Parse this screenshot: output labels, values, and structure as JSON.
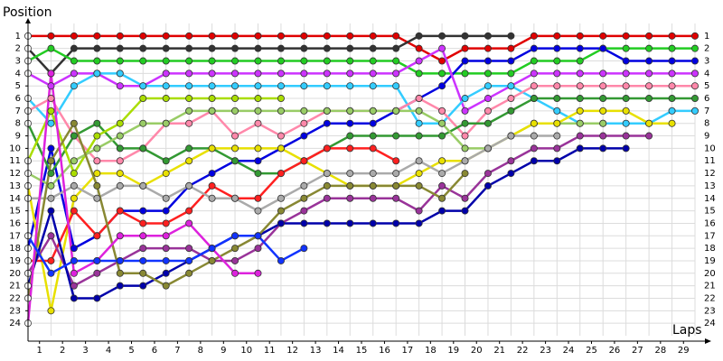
{
  "chart_data": {
    "type": "line",
    "y_label": "Position",
    "x_label": "Laps",
    "x": [
      0,
      1,
      2,
      3,
      4,
      5,
      6,
      7,
      8,
      9,
      10,
      11,
      12,
      13,
      14,
      15,
      16,
      17,
      18,
      19,
      20,
      21,
      22,
      23,
      24,
      25,
      26,
      27,
      28,
      29
    ],
    "xlim": [
      0,
      29
    ],
    "xticks": [
      {
        "value": 0.5,
        "label": "1"
      },
      {
        "value": 1.5,
        "label": "2"
      },
      {
        "value": 2.5,
        "label": "3"
      },
      {
        "value": 3.5,
        "label": "4"
      },
      {
        "value": 4.5,
        "label": "5"
      },
      {
        "value": 5.5,
        "label": "6"
      },
      {
        "value": 6.5,
        "label": "7"
      },
      {
        "value": 7.5,
        "label": "8"
      },
      {
        "value": 8.5,
        "label": "9"
      },
      {
        "value": 9.5,
        "label": "10"
      },
      {
        "value": 10.5,
        "label": "11"
      },
      {
        "value": 11.5,
        "label": "12"
      },
      {
        "value": 12.5,
        "label": "13"
      },
      {
        "value": 13.5,
        "label": "14"
      },
      {
        "value": 14.5,
        "label": "15"
      },
      {
        "value": 15.5,
        "label": "16"
      },
      {
        "value": 16.5,
        "label": "17"
      },
      {
        "value": 17.5,
        "label": "18"
      },
      {
        "value": 18.5,
        "label": "19"
      },
      {
        "value": 19.5,
        "label": "20"
      },
      {
        "value": 20.5,
        "label": "21"
      },
      {
        "value": 21.5,
        "label": "22"
      },
      {
        "value": 22.5,
        "label": "23"
      },
      {
        "value": 23.5,
        "label": "24"
      },
      {
        "value": 24.5,
        "label": "25"
      },
      {
        "value": 25.5,
        "label": "26"
      },
      {
        "value": 26.5,
        "label": "27"
      },
      {
        "value": 27.5,
        "label": "28"
      },
      {
        "value": 28.5,
        "label": "29"
      }
    ],
    "ylim": [
      25,
      0
    ],
    "yticks": [
      1,
      2,
      3,
      4,
      5,
      6,
      7,
      8,
      9,
      10,
      11,
      12,
      13,
      14,
      15,
      16,
      17,
      18,
      19,
      20,
      21,
      22,
      23,
      24
    ],
    "grid": true,
    "series": [
      {
        "color": "#e00000",
        "values": [
          1,
          1,
          1,
          1,
          1,
          1,
          1,
          1,
          1,
          1,
          1,
          1,
          1,
          1,
          1,
          1,
          1,
          2,
          3,
          2,
          2,
          2,
          1,
          1,
          1,
          1,
          1,
          1,
          1,
          1
        ]
      },
      {
        "color": "#333333",
        "values": [
          2,
          4,
          2,
          2,
          2,
          2,
          2,
          2,
          2,
          2,
          2,
          2,
          2,
          2,
          2,
          2,
          2,
          1,
          1,
          1,
          1,
          1,
          null,
          null,
          null,
          null,
          null,
          null,
          null,
          null
        ]
      },
      {
        "color": "#22cc22",
        "values": [
          3,
          2,
          3,
          3,
          3,
          3,
          3,
          3,
          3,
          3,
          3,
          3,
          3,
          3,
          3,
          3,
          3,
          4,
          4,
          4,
          4,
          4,
          3,
          3,
          3,
          2,
          2,
          2,
          2,
          2
        ]
      },
      {
        "color": "#0000e0",
        "values": [
          18,
          10,
          18,
          17,
          15,
          15,
          15,
          13,
          12,
          11,
          11,
          10,
          9,
          8,
          8,
          8,
          7,
          6,
          5,
          3,
          3,
          3,
          2,
          2,
          2,
          2,
          3,
          3,
          3,
          3
        ]
      },
      {
        "color": "#cc33ff",
        "values": [
          4,
          5,
          4,
          4,
          5,
          5,
          4,
          4,
          4,
          4,
          4,
          4,
          4,
          4,
          4,
          4,
          4,
          3,
          2,
          7,
          6,
          5,
          4,
          4,
          4,
          4,
          4,
          4,
          4,
          4
        ]
      },
      {
        "color": "#33ccff",
        "values": [
          6,
          8,
          5,
          4,
          4,
          5,
          5,
          5,
          5,
          5,
          5,
          5,
          5,
          5,
          5,
          5,
          5,
          8,
          8,
          6,
          5,
          5,
          6,
          7,
          8,
          8,
          8,
          8,
          7,
          7
        ]
      },
      {
        "color": "#ff88aa",
        "values": [
          7,
          6,
          9,
          11,
          11,
          10,
          8,
          8,
          7,
          9,
          8,
          9,
          8,
          7,
          7,
          7,
          7,
          6,
          7,
          9,
          7,
          6,
          5,
          5,
          5,
          5,
          5,
          5,
          5,
          5
        ]
      },
      {
        "color": "#339933",
        "values": [
          8,
          12,
          9,
          8,
          10,
          10,
          11,
          10,
          10,
          11,
          12,
          12,
          11,
          10,
          9,
          9,
          9,
          9,
          9,
          8,
          8,
          7,
          6,
          6,
          6,
          6,
          6,
          6,
          6,
          6
        ]
      },
      {
        "color": "#aadd00",
        "values": [
          11,
          7,
          12,
          9,
          8,
          6,
          6,
          6,
          6,
          6,
          6,
          6,
          null,
          null,
          null,
          null,
          null,
          null,
          null,
          null,
          null,
          null,
          null,
          null,
          null,
          null,
          null,
          null,
          null,
          null
        ]
      },
      {
        "color": "#99cc66",
        "values": [
          12,
          13,
          11,
          10,
          9,
          8,
          8,
          7,
          7,
          7,
          7,
          7,
          7,
          7,
          7,
          7,
          7,
          7,
          8,
          10,
          10,
          9,
          8,
          8,
          8,
          8,
          null,
          null,
          null,
          null
        ]
      },
      {
        "color": "#e8e000",
        "values": [
          13,
          23,
          14,
          12,
          12,
          13,
          12,
          11,
          10,
          10,
          10,
          10,
          11,
          12,
          13,
          13,
          13,
          12,
          11,
          11,
          10,
          9,
          8,
          8,
          7,
          7,
          7,
          8,
          8,
          null
        ]
      },
      {
        "color": "#ff2020",
        "values": [
          19,
          19,
          15,
          17,
          15,
          16,
          16,
          15,
          13,
          14,
          14,
          12,
          11,
          10,
          10,
          10,
          11,
          null,
          null,
          null,
          null,
          null,
          null,
          null,
          null,
          null,
          null,
          null,
          null,
          null
        ]
      },
      {
        "color": "#aaaaaa",
        "values": [
          14,
          14,
          13,
          14,
          13,
          13,
          14,
          13,
          14,
          14,
          15,
          14,
          13,
          12,
          12,
          12,
          12,
          11,
          12,
          11,
          10,
          9,
          9,
          9,
          null,
          null,
          null,
          null,
          null,
          null
        ]
      },
      {
        "color": "#993399",
        "values": [
          20,
          17,
          21,
          20,
          19,
          18,
          18,
          18,
          19,
          19,
          18,
          16,
          15,
          14,
          14,
          14,
          14,
          15,
          13,
          14,
          12,
          11,
          10,
          10,
          9,
          9,
          9,
          9,
          null,
          null
        ]
      },
      {
        "color": "#0000aa",
        "values": [
          21,
          15,
          22,
          22,
          21,
          21,
          20,
          19,
          18,
          17,
          17,
          16,
          16,
          16,
          16,
          16,
          16,
          16,
          15,
          15,
          13,
          12,
          11,
          11,
          10,
          10,
          10,
          null,
          null,
          null
        ]
      },
      {
        "color": "#888833",
        "values": [
          22,
          11,
          8,
          13,
          20,
          20,
          21,
          20,
          19,
          18,
          17,
          15,
          14,
          13,
          13,
          13,
          13,
          13,
          14,
          12,
          null,
          null,
          null,
          null,
          null,
          null,
          null,
          null,
          null,
          null
        ]
      },
      {
        "color": "#dd22dd",
        "values": [
          24,
          4,
          20,
          19,
          17,
          17,
          17,
          16,
          18,
          20,
          20,
          null,
          null,
          null,
          null,
          null,
          null,
          null,
          null,
          null,
          null,
          null,
          null,
          null,
          null,
          null,
          null,
          null,
          null,
          null
        ]
      },
      {
        "color": "#1133ff",
        "values": [
          17,
          20,
          19,
          19,
          19,
          19,
          19,
          19,
          18,
          17,
          17,
          19,
          18,
          null,
          null,
          null,
          null,
          null,
          null,
          null,
          null,
          null,
          null,
          null,
          null,
          null,
          null,
          null,
          null,
          null
        ]
      }
    ]
  }
}
